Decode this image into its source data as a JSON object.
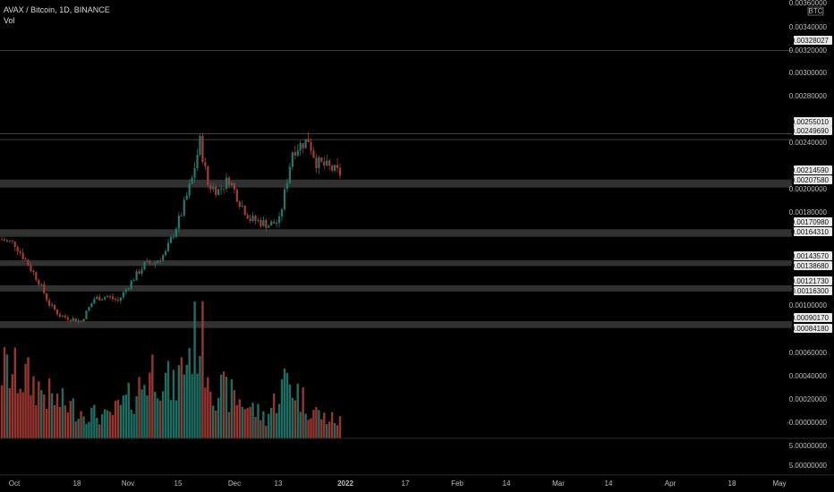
{
  "header": {
    "symbol_line": "AVAX / Bitcoin, 1D, BINANCE",
    "indicator": "Vol"
  },
  "currency_badge": "BTC",
  "colors": {
    "up": "#1f7a6e",
    "down": "#a93b33",
    "zone": "#5a5a5a",
    "bg": "#000000",
    "axis_text": "#bdbdbd"
  },
  "chart_data": {
    "type": "candlestick",
    "x_ticks": [
      "Oct",
      "18",
      "Nov",
      "15",
      "Dec",
      "13",
      "2022",
      "17",
      "Feb",
      "14",
      "Mar",
      "14",
      "Apr",
      "18",
      "May"
    ],
    "x_ticks_bold": [
      "2022"
    ],
    "price_axis_labels": [
      "0.00360000",
      "0.00340000",
      "0.00320000",
      "0.00300000",
      "0.00280000",
      "0.00240000",
      "0.00200000",
      "0.00180000",
      "0.00100000"
    ],
    "volume_axis_labels": [
      "0.00060000",
      "0.00040000",
      "0.00020000",
      "-0.00000000",
      "5.00000000",
      "5.00000000"
    ],
    "ylim": [
      0.0008,
      0.0037
    ],
    "levels": [
      {
        "label": "0.00328027",
        "value": 0.00328027,
        "style": "line"
      },
      {
        "label": "0.00255010",
        "value": 0.0025501,
        "style": "line"
      },
      {
        "label": "0.00249690",
        "value": 0.0024969,
        "style": "line"
      },
      {
        "label": "0.00214590",
        "value": 0.0021459,
        "style": "zone"
      },
      {
        "label": "0.00207580",
        "value": 0.0020758,
        "style": "zone"
      },
      {
        "label": "0.00170980",
        "value": 0.0017098,
        "style": "zone"
      },
      {
        "label": "0.00164310",
        "value": 0.0016431,
        "style": "zone"
      },
      {
        "label": "0.00143570",
        "value": 0.0014357,
        "style": "zone"
      },
      {
        "label": "0.00138680",
        "value": 0.0013868,
        "style": "zone"
      },
      {
        "label": "0.00121730",
        "value": 0.0012173,
        "style": "zone"
      },
      {
        "label": "0.00116300",
        "value": 0.001163,
        "style": "zone"
      },
      {
        "label": "0.00090170",
        "value": 0.0009017,
        "style": "zone"
      },
      {
        "label": "0.00084180",
        "value": 0.0008418,
        "style": "zone"
      }
    ],
    "price_key_points": [
      [
        0,
        0.00162
      ],
      [
        5,
        0.00158
      ],
      [
        10,
        0.0014
      ],
      [
        14,
        0.00125
      ],
      [
        18,
        0.00105
      ],
      [
        22,
        0.00095
      ],
      [
        27,
        0.00092
      ],
      [
        30,
        0.0009
      ],
      [
        35,
        0.0011
      ],
      [
        40,
        0.00112
      ],
      [
        44,
        0.00108
      ],
      [
        49,
        0.00125
      ],
      [
        54,
        0.0014
      ],
      [
        58,
        0.00142
      ],
      [
        62,
        0.0015
      ],
      [
        68,
        0.00185
      ],
      [
        72,
        0.00215
      ],
      [
        75,
        0.00248
      ],
      [
        78,
        0.0021
      ],
      [
        82,
        0.00205
      ],
      [
        86,
        0.00215
      ],
      [
        90,
        0.00195
      ],
      [
        94,
        0.0018
      ],
      [
        97,
        0.00178
      ],
      [
        101,
        0.00175
      ],
      [
        105,
        0.00178
      ],
      [
        108,
        0.00215
      ],
      [
        110,
        0.0024
      ],
      [
        113,
        0.00245
      ],
      [
        116,
        0.0025
      ],
      [
        119,
        0.0023
      ],
      [
        124,
        0.00225
      ],
      [
        128,
        0.0022
      ]
    ],
    "volume_axis_range": [
      0,
      0.0007
    ],
    "volume_key_points": [
      [
        0,
        0.0004
      ],
      [
        10,
        0.00034
      ],
      [
        20,
        0.00022
      ],
      [
        30,
        0.00016
      ],
      [
        40,
        0.00012
      ],
      [
        50,
        0.00025
      ],
      [
        58,
        0.00042
      ],
      [
        65,
        0.00028
      ],
      [
        72,
        0.00055
      ],
      [
        75,
        0.00062
      ],
      [
        80,
        0.0003
      ],
      [
        90,
        0.00022
      ],
      [
        100,
        0.00012
      ],
      [
        108,
        0.00035
      ],
      [
        115,
        0.0002
      ],
      [
        122,
        0.00012
      ],
      [
        128,
        0.0001
      ]
    ],
    "n_candles": 129
  }
}
